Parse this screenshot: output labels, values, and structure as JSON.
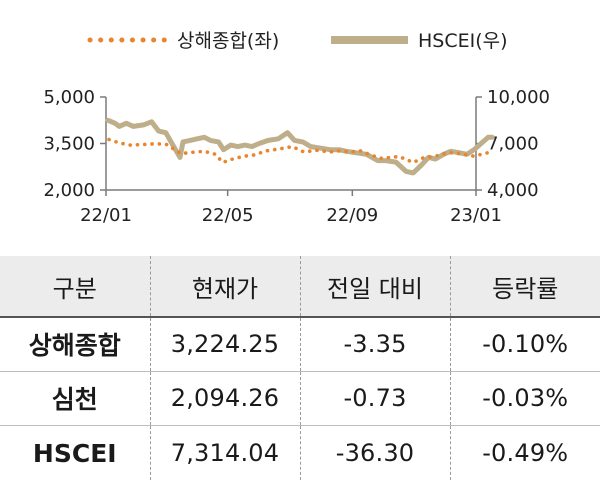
{
  "chart_data": {
    "type": "line",
    "x_ticks": [
      "22/01",
      "22/05",
      "22/09",
      "23/01"
    ],
    "x_range": [
      "2022-01",
      "2023-01"
    ],
    "y_left": {
      "ticks": [
        "5,000",
        "3,500",
        "2,000"
      ],
      "range": [
        2000,
        5000
      ]
    },
    "y_right": {
      "ticks": [
        "10,000",
        "7,000",
        "4,000"
      ],
      "range": [
        4000,
        10000
      ]
    },
    "grid": false,
    "legend_position": "top",
    "series": [
      {
        "name": "상해종합(좌)",
        "axis": "left",
        "style": "dotted",
        "color": "#e8852e",
        "points": [
          [
            "2022-01-04",
            3630
          ],
          [
            "2022-01-14",
            3520
          ],
          [
            "2022-01-25",
            3450
          ],
          [
            "2022-02-08",
            3470
          ],
          [
            "2022-02-18",
            3490
          ],
          [
            "2022-03-01",
            3480
          ],
          [
            "2022-03-10",
            3300
          ],
          [
            "2022-03-16",
            3170
          ],
          [
            "2022-03-25",
            3210
          ],
          [
            "2022-04-08",
            3250
          ],
          [
            "2022-04-19",
            3150
          ],
          [
            "2022-04-26",
            2890
          ],
          [
            "2022-05-06",
            3000
          ],
          [
            "2022-05-17",
            3090
          ],
          [
            "2022-05-27",
            3130
          ],
          [
            "2022-06-08",
            3260
          ],
          [
            "2022-06-20",
            3320
          ],
          [
            "2022-07-04",
            3400
          ],
          [
            "2022-07-15",
            3230
          ],
          [
            "2022-07-28",
            3280
          ],
          [
            "2022-08-10",
            3230
          ],
          [
            "2022-08-19",
            3260
          ],
          [
            "2022-08-30",
            3230
          ],
          [
            "2022-09-09",
            3260
          ],
          [
            "2022-09-20",
            3120
          ],
          [
            "2022-09-30",
            3020
          ],
          [
            "2022-10-17",
            3080
          ],
          [
            "2022-10-31",
            2890
          ],
          [
            "2022-11-10",
            3040
          ],
          [
            "2022-11-22",
            3090
          ],
          [
            "2022-12-05",
            3210
          ],
          [
            "2022-12-16",
            3170
          ],
          [
            "2022-12-30",
            3090
          ],
          [
            "2023-01-16",
            3230
          ]
        ]
      },
      {
        "name": "HSCEI(우)",
        "axis": "right",
        "style": "solid",
        "color": "#bfae8a",
        "points": [
          [
            "2022-01-03",
            8500
          ],
          [
            "2022-01-10",
            8300
          ],
          [
            "2022-01-14",
            8100
          ],
          [
            "2022-01-21",
            8300
          ],
          [
            "2022-01-28",
            8100
          ],
          [
            "2022-02-07",
            8200
          ],
          [
            "2022-02-15",
            8400
          ],
          [
            "2022-02-22",
            7800
          ],
          [
            "2022-03-01",
            7700
          ],
          [
            "2022-03-08",
            6900
          ],
          [
            "2022-03-15",
            6100
          ],
          [
            "2022-03-18",
            7100
          ],
          [
            "2022-03-25",
            7200
          ],
          [
            "2022-04-01",
            7300
          ],
          [
            "2022-04-08",
            7400
          ],
          [
            "2022-04-14",
            7200
          ],
          [
            "2022-04-22",
            7100
          ],
          [
            "2022-04-27",
            6600
          ],
          [
            "2022-05-04",
            6900
          ],
          [
            "2022-05-11",
            6800
          ],
          [
            "2022-05-18",
            6900
          ],
          [
            "2022-05-25",
            6800
          ],
          [
            "2022-06-01",
            7000
          ],
          [
            "2022-06-10",
            7200
          ],
          [
            "2022-06-20",
            7300
          ],
          [
            "2022-06-29",
            7700
          ],
          [
            "2022-07-06",
            7200
          ],
          [
            "2022-07-14",
            7100
          ],
          [
            "2022-07-22",
            6800
          ],
          [
            "2022-08-01",
            6700
          ],
          [
            "2022-08-10",
            6600
          ],
          [
            "2022-08-19",
            6600
          ],
          [
            "2022-08-26",
            6500
          ],
          [
            "2022-09-05",
            6400
          ],
          [
            "2022-09-15",
            6300
          ],
          [
            "2022-09-26",
            5900
          ],
          [
            "2022-10-04",
            5900
          ],
          [
            "2022-10-14",
            5800
          ],
          [
            "2022-10-24",
            5200
          ],
          [
            "2022-10-31",
            5100
          ],
          [
            "2022-11-08",
            5600
          ],
          [
            "2022-11-15",
            6100
          ],
          [
            "2022-11-22",
            6000
          ],
          [
            "2022-11-30",
            6300
          ],
          [
            "2022-12-07",
            6500
          ],
          [
            "2022-12-16",
            6400
          ],
          [
            "2022-12-23",
            6300
          ],
          [
            "2022-12-30",
            6600
          ],
          [
            "2023-01-06",
            7000
          ],
          [
            "2023-01-13",
            7400
          ],
          [
            "2023-01-17",
            7400
          ]
        ]
      }
    ]
  },
  "table": {
    "headers": [
      "구분",
      "현재가",
      "전일 대비",
      "등락률"
    ],
    "rows": [
      {
        "name": "상해종합",
        "price": "3,224.25",
        "change": "-3.35",
        "pct": "-0.10%"
      },
      {
        "name": "심천",
        "price": "2,094.26",
        "change": "-0.73",
        "pct": "-0.03%"
      },
      {
        "name": "HSCEI",
        "price": "7,314.04",
        "change": "-36.30",
        "pct": "-0.49%"
      }
    ]
  }
}
